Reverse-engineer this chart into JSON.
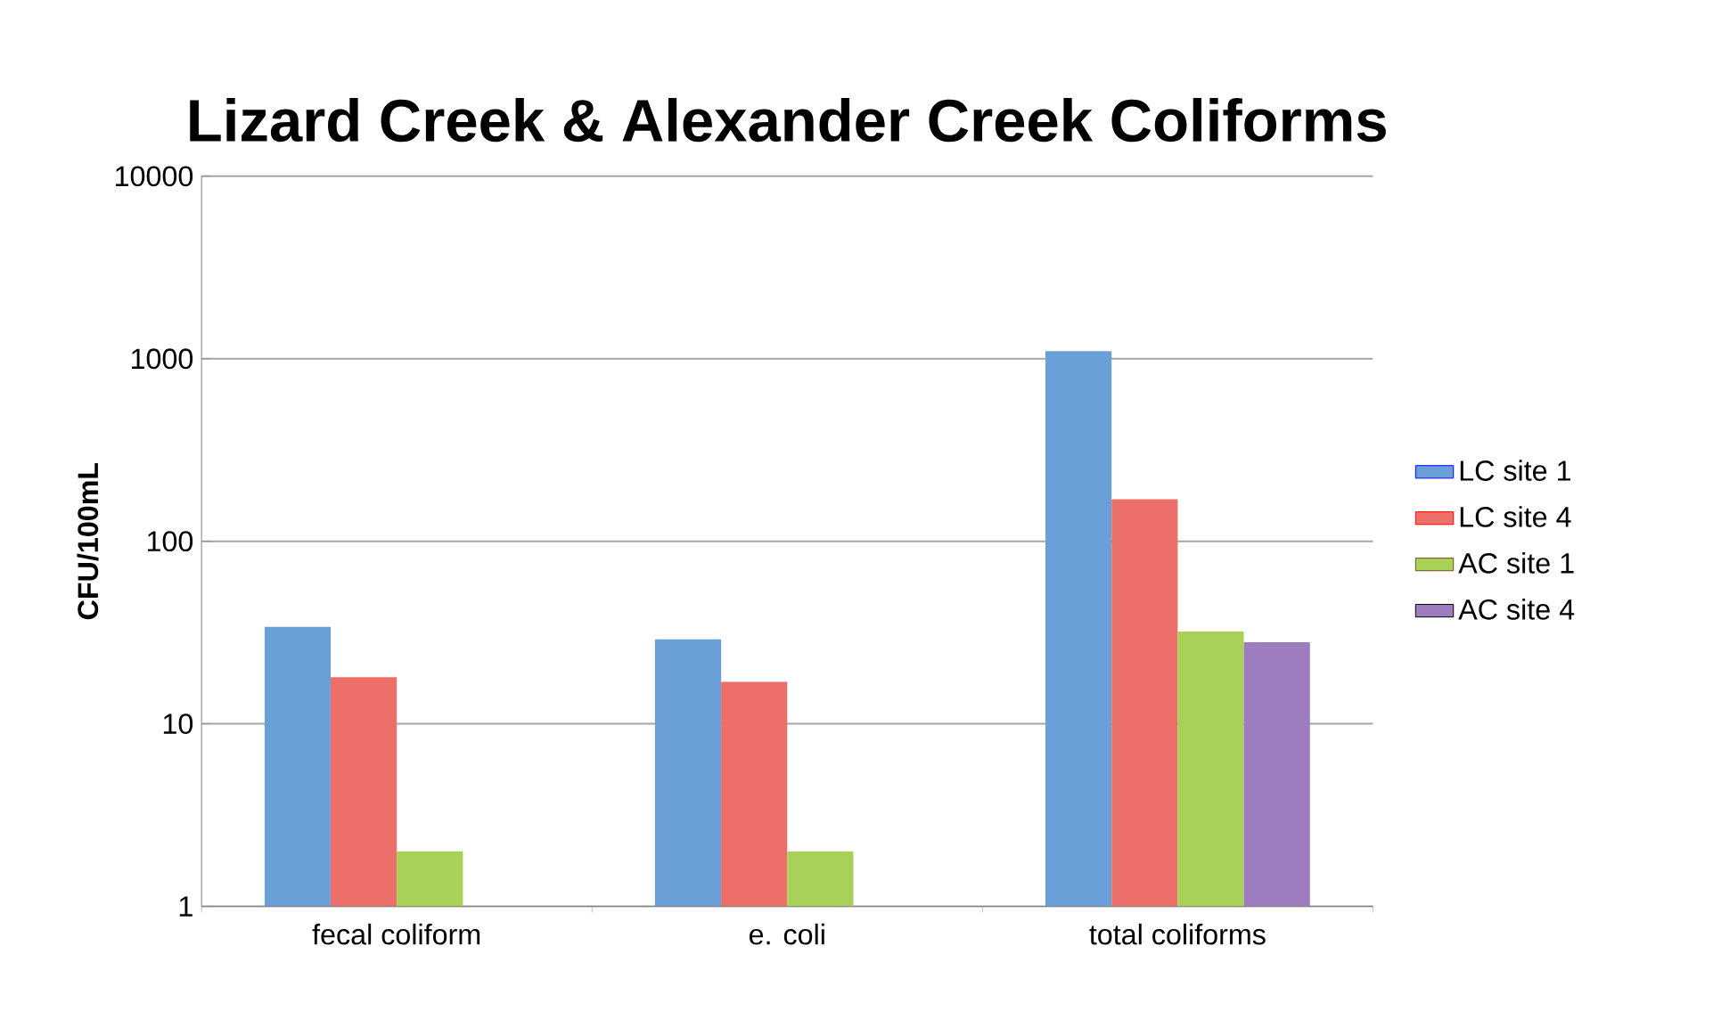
{
  "chart_data": {
    "type": "bar",
    "title": "Lizard Creek & Alexander Creek Coliforms",
    "ylabel": "CFU/100mL",
    "categories": [
      "fecal coliform",
      "e. coli",
      "total coliforms"
    ],
    "series": [
      {
        "name": "LC site 1",
        "color": "#6a9fd8",
        "values": [
          34,
          29,
          1100
        ]
      },
      {
        "name": "LC site 4",
        "color": "#ec6f69",
        "values": [
          18,
          17,
          170
        ]
      },
      {
        "name": "AC site 1",
        "color": "#a9d157",
        "values": [
          2,
          2,
          32
        ]
      },
      {
        "name": "AC site 4",
        "color": "#9d7cc0",
        "values": [
          null,
          null,
          28
        ]
      }
    ],
    "log": "y",
    "ylim": [
      1,
      10000
    ],
    "yticks": [
      1,
      10,
      100,
      1000,
      10000
    ],
    "grid": "y",
    "legend": "right"
  }
}
